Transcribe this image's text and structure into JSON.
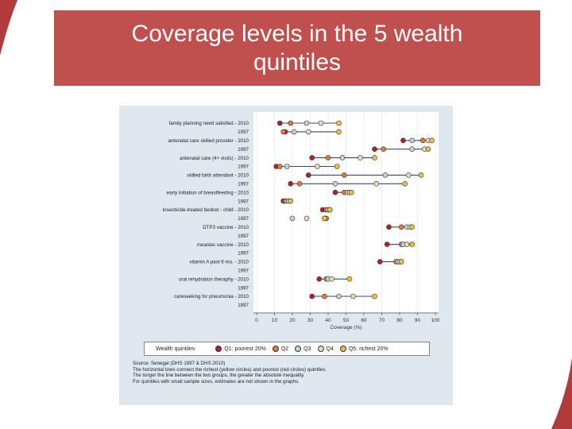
{
  "header": {
    "title": "Coverage levels in the 5 wealth quintiles"
  },
  "colors": {
    "title_bar": "#c0504d",
    "accent_shape": "#b23a3a",
    "chart_bg": "#dfe8ef",
    "line": "#2f4f6f",
    "q1": "#b22222",
    "q2": "#e07b39",
    "q3": "#c8d0d8",
    "q4": "#e8dcb0",
    "q5": "#e8c440"
  },
  "chart_data": {
    "type": "scatter",
    "xlabel": "Coverage (%)",
    "xlim": [
      0,
      100
    ],
    "xticks": [
      "0",
      "10",
      "20",
      "30",
      "40",
      "50",
      "60",
      "70",
      "80",
      "90",
      "100"
    ],
    "grid": true,
    "legend": {
      "title": "Wealth quintiles",
      "position": "bottom",
      "items": [
        "Q1: poorest 20%",
        "Q2",
        "Q3",
        "Q4",
        "Q5: richest 20%"
      ]
    },
    "series_names": [
      "Q1",
      "Q2",
      "Q3",
      "Q4",
      "Q5"
    ],
    "rows": [
      {
        "label": "family planning need satisfied - 2010",
        "values": [
          13,
          19,
          28,
          36,
          46
        ]
      },
      {
        "label": "1997",
        "values": [
          16,
          15,
          21,
          29,
          46
        ]
      },
      {
        "label": "antenatal care skilled provider - 2010",
        "values": [
          82,
          93,
          87,
          96,
          98
        ]
      },
      {
        "label": "1997",
        "values": [
          66,
          71,
          87,
          94,
          96
        ]
      },
      {
        "label": "antenatal care (4+ visits) - 2010",
        "values": [
          31,
          40,
          48,
          58,
          66
        ]
      },
      {
        "label": "1997",
        "values": [
          11,
          13,
          17,
          34,
          45
        ]
      },
      {
        "label": "skilled birth attendant - 2010",
        "values": [
          29,
          49,
          72,
          85,
          92
        ]
      },
      {
        "label": "1997",
        "values": [
          19,
          24,
          44,
          67,
          83
        ]
      },
      {
        "label": "early initiation of breastfeeding - 2010",
        "values": [
          44,
          49,
          51,
          52,
          53
        ]
      },
      {
        "label": "1997",
        "values": [
          15,
          16,
          17,
          18,
          19
        ]
      },
      {
        "label": "insecticide-treated bednet - child - 2010",
        "values": [
          37,
          39,
          40,
          41,
          41
        ]
      },
      {
        "label": "1997",
        "values": [
          38,
          39,
          20,
          28,
          38
        ]
      },
      {
        "label": "DTP3 vaccine - 2010",
        "values": [
          74,
          81,
          84,
          86,
          87
        ]
      },
      {
        "label": "1997",
        "values": []
      },
      {
        "label": "measles vaccine - 2010",
        "values": [
          73,
          81,
          82,
          84,
          87
        ]
      },
      {
        "label": "1997",
        "values": []
      },
      {
        "label": "vitamin A past 6 mo. - 2010",
        "values": [
          69,
          78,
          79,
          80,
          81
        ]
      },
      {
        "label": "1997",
        "values": []
      },
      {
        "label": "oral rehydration theraphy - 2010",
        "values": [
          35,
          39,
          40,
          42,
          52
        ]
      },
      {
        "label": "1997",
        "values": []
      },
      {
        "label": "careseeking for pneumonia - 2010",
        "values": [
          31,
          38,
          46,
          54,
          66
        ]
      },
      {
        "label": "1997",
        "values": []
      }
    ],
    "source": "Source: Senegal (DHS 1997 & DHS 2010)",
    "notes": [
      "The horizontal lines connect the richest (yellow circles) and poorest (red circles) quintiles.",
      "The longer the line between the two groups, the greater the absolute inequality.",
      "For quintiles with small sample sizes, estimates are not shown in the graphs."
    ]
  }
}
